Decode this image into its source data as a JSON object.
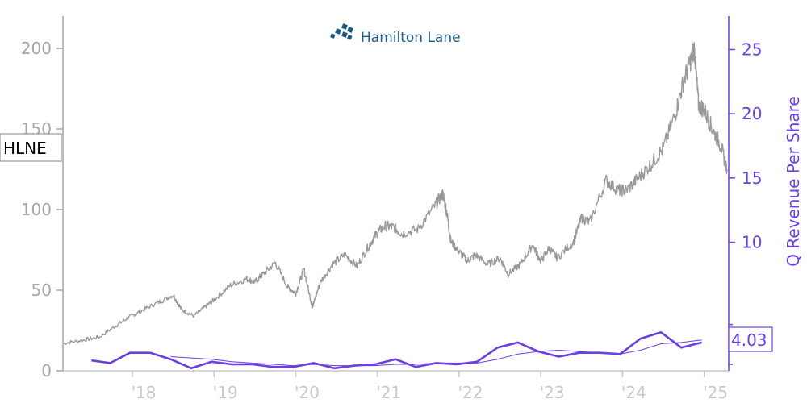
{
  "logo": {
    "text": "Hamilton Lane",
    "icon": "hamilton-lane-logo-icon"
  },
  "ticker": "HLNE",
  "colors": {
    "price": "#999999",
    "revenue": "#6b3fe0",
    "ticks": "#a6a6a6",
    "logo": "#1d5b86"
  },
  "chart_data": {
    "type": "line",
    "x_ticks": [
      "'18",
      "'19",
      "'20",
      "'21",
      "'22",
      "'23",
      "'24",
      "'25"
    ],
    "x_tick_years": [
      2018,
      2019,
      2020,
      2021,
      2022,
      2023,
      2024,
      2025
    ],
    "xlim": [
      2017.15,
      2025.3
    ],
    "y_left": {
      "ticks": [
        "0",
        "50",
        "100",
        "150",
        "200"
      ],
      "tick_values": [
        0,
        50,
        100,
        150,
        200
      ],
      "ylim": [
        0,
        220
      ]
    },
    "y_right": {
      "label": "Q Revenue Per Share",
      "ticks": [
        "10",
        "15",
        "20",
        "25"
      ],
      "tick_values": [
        10,
        15,
        20,
        25
      ],
      "ylim": [
        0,
        27.6
      ]
    },
    "last_value_label": "4.03",
    "series": [
      {
        "axis": "left",
        "x": [
          2017.15,
          2017.4,
          2017.6,
          2017.8,
          2017.95,
          2018.1,
          2018.3,
          2018.5,
          2018.6,
          2018.75,
          2018.9,
          2019.0,
          2019.2,
          2019.4,
          2019.5,
          2019.6,
          2019.75,
          2019.9,
          2020.0,
          2020.1,
          2020.2,
          2020.22,
          2020.3,
          2020.45,
          2020.6,
          2020.75,
          2020.9,
          2021.0,
          2021.1,
          2021.2,
          2021.3,
          2021.5,
          2021.7,
          2021.8,
          2021.85,
          2021.9,
          2022.0,
          2022.1,
          2022.2,
          2022.35,
          2022.5,
          2022.6,
          2022.75,
          2022.9,
          2023.0,
          2023.1,
          2023.2,
          2023.4,
          2023.5,
          2023.6,
          2023.8,
          2023.95,
          2024.05,
          2024.2,
          2024.35,
          2024.5,
          2024.65,
          2024.75,
          2024.85,
          2024.88,
          2024.93,
          2025.0,
          2025.1,
          2025.2,
          2025.28
        ],
        "y": [
          17,
          19,
          21,
          28,
          33,
          37,
          42,
          47,
          38,
          34,
          40,
          44,
          53,
          57,
          55,
          60,
          67,
          52,
          48,
          63,
          40,
          42,
          55,
          66,
          72,
          65,
          78,
          86,
          90,
          89,
          85,
          88,
          102,
          110,
          98,
          80,
          74,
          68,
          72,
          66,
          70,
          60,
          66,
          78,
          68,
          76,
          70,
          80,
          95,
          92,
          118,
          112,
          112,
          120,
          128,
          138,
          160,
          180,
          195,
          200,
          165,
          162,
          150,
          140,
          125
        ]
      },
      {
        "axis": "right",
        "name": "",
        "x": [
          2017.5,
          2017.73,
          2017.97,
          2018.22,
          2018.47,
          2018.72,
          2018.97,
          2019.22,
          2019.47,
          2019.72,
          2019.97,
          2020.22,
          2020.47,
          2020.72,
          2020.97,
          2021.22,
          2021.47,
          2021.72,
          2021.97,
          2022.22,
          2022.47,
          2022.72,
          2022.97,
          2023.22,
          2023.47,
          2023.72,
          2023.97,
          2024.22,
          2024.47,
          2024.72,
          2024.97
        ],
        "y": [
          0.8,
          0.6,
          1.4,
          1.4,
          0.9,
          0.2,
          0.7,
          0.5,
          0.5,
          0.3,
          0.3,
          0.6,
          0.2,
          0.4,
          0.5,
          0.9,
          0.3,
          0.6,
          0.5,
          0.7,
          1.8,
          2.2,
          1.5,
          1.1,
          1.4,
          1.4,
          1.3,
          2.5,
          3.0,
          1.8,
          2.2
        ]
      },
      {
        "axis": "right",
        "name": "",
        "x": [
          2018.47,
          2018.72,
          2018.97,
          2019.22,
          2019.47,
          2019.72,
          2019.97,
          2020.22,
          2020.47,
          2020.72,
          2020.97,
          2021.22,
          2021.47,
          2021.72,
          2021.97,
          2022.22,
          2022.47,
          2022.72,
          2022.97,
          2023.22,
          2023.47,
          2023.72,
          2023.97,
          2024.22,
          2024.47,
          2024.72,
          2024.97
        ],
        "y": [
          1.1,
          1.0,
          0.9,
          0.7,
          0.6,
          0.5,
          0.4,
          0.5,
          0.4,
          0.4,
          0.4,
          0.5,
          0.5,
          0.6,
          0.6,
          0.6,
          0.9,
          1.3,
          1.5,
          1.6,
          1.5,
          1.4,
          1.3,
          1.6,
          2.1,
          2.2,
          2.4
        ]
      }
    ]
  }
}
